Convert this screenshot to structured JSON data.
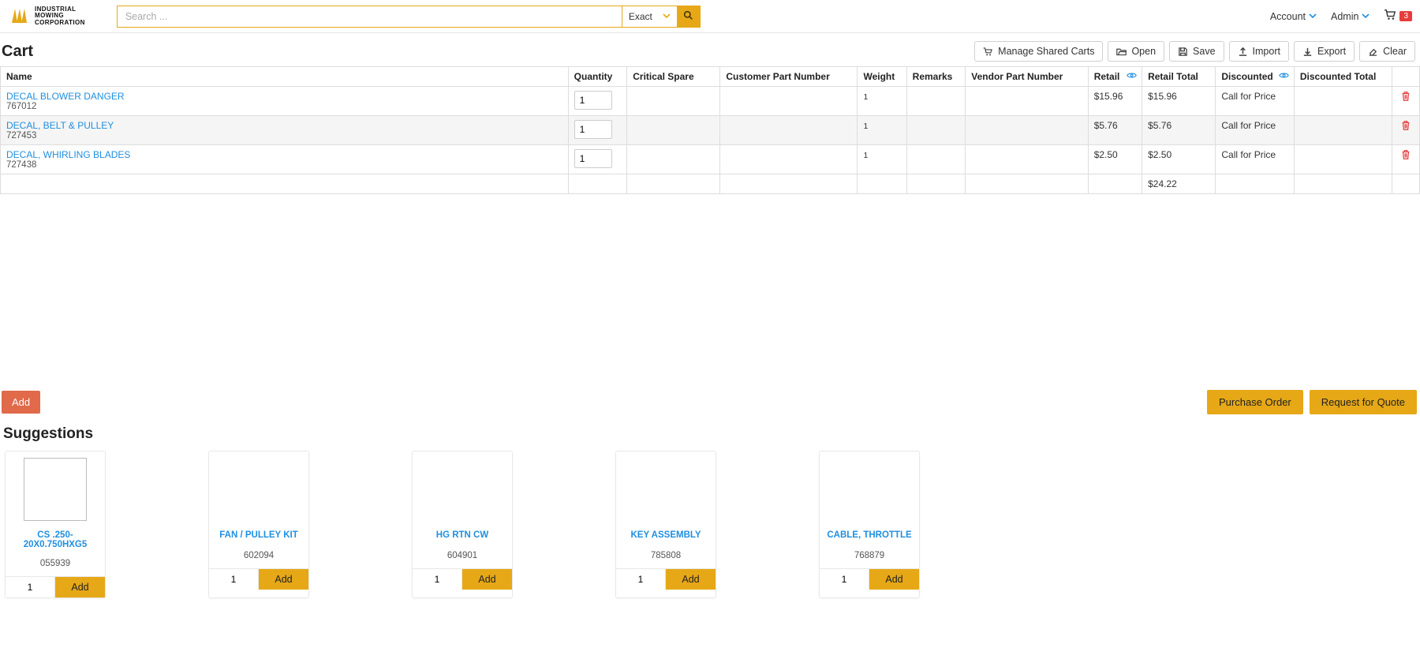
{
  "brand": {
    "l1": "INDUSTRIAL",
    "l2": "MOWING",
    "l3": "CORPORATION"
  },
  "header": {
    "search_placeholder": "Search ...",
    "search_mode": "Exact",
    "account_label": "Account",
    "admin_label": "Admin",
    "cart_count": "3"
  },
  "page": {
    "title": "Cart",
    "manage_shared": "Manage Shared Carts",
    "open": "Open",
    "save": "Save",
    "import": "Import",
    "export": "Export",
    "clear": "Clear"
  },
  "cols": {
    "name": "Name",
    "qty": "Quantity",
    "critical": "Critical Spare",
    "cpn": "Customer Part Number",
    "weight": "Weight",
    "remarks": "Remarks",
    "vpn": "Vendor Part Number",
    "retail": "Retail",
    "retail_total": "Retail Total",
    "discounted": "Discounted",
    "discounted_total": "Discounted Total"
  },
  "rows": [
    {
      "name": "DECAL BLOWER DANGER",
      "sku": "767012",
      "qty": "1",
      "weight": "1",
      "retail": "$15.96",
      "retail_total": "$15.96",
      "discounted": "Call for Price"
    },
    {
      "name": "DECAL, BELT & PULLEY",
      "sku": "727453",
      "qty": "1",
      "weight": "1",
      "retail": "$5.76",
      "retail_total": "$5.76",
      "discounted": "Call for Price"
    },
    {
      "name": "DECAL, WHIRLING BLADES",
      "sku": "727438",
      "qty": "1",
      "weight": "1",
      "retail": "$2.50",
      "retail_total": "$2.50",
      "discounted": "Call for Price"
    }
  ],
  "totals": {
    "retail_total": "$24.22"
  },
  "actions": {
    "add": "Add",
    "purchase_order": "Purchase Order",
    "rfq": "Request for Quote"
  },
  "suggestions_title": "Suggestions",
  "suggestions": [
    {
      "name": "CS .250-20X0.750HXG5",
      "sku": "055939",
      "qty": "1",
      "add": "Add",
      "icon": "bolt"
    },
    {
      "name": "FAN / PULLEY KIT",
      "sku": "602094",
      "qty": "1",
      "add": "Add",
      "icon": "gear"
    },
    {
      "name": "HG RTN CW",
      "sku": "604901",
      "qty": "1",
      "add": "Add",
      "icon": "gear"
    },
    {
      "name": "KEY ASSEMBLY",
      "sku": "785808",
      "qty": "1",
      "add": "Add",
      "icon": "key"
    },
    {
      "name": "CABLE, THROTTLE",
      "sku": "768879",
      "qty": "1",
      "add": "Add",
      "icon": "gear"
    }
  ],
  "colors": {
    "accent": "#e6a817",
    "link": "#1f8fe0",
    "danger": "#e63c3c",
    "add_btn": "#e06a4a",
    "border": "#dddddd"
  }
}
